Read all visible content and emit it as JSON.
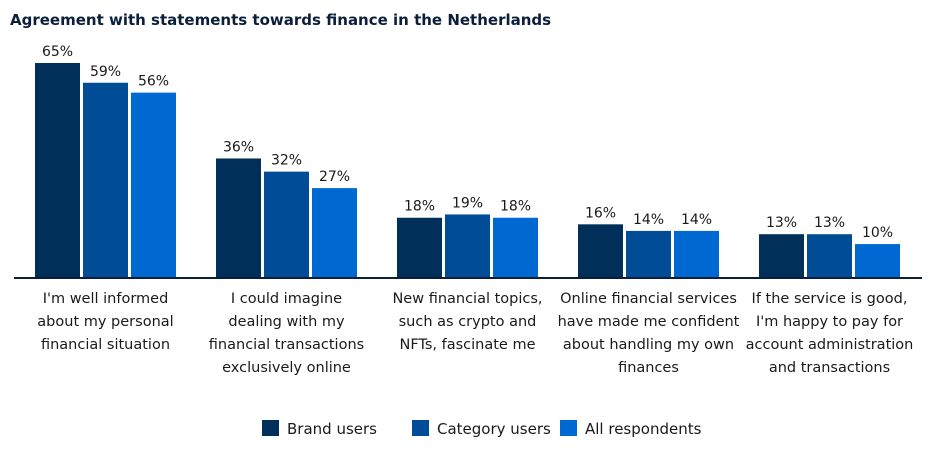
{
  "chart_data": {
    "type": "bar",
    "title": "Agreement with statements towards finance in the Netherlands",
    "xlabel": "",
    "ylabel": "",
    "ylim": [
      0,
      70
    ],
    "grid": false,
    "legend_position": "bottom",
    "categories": [
      [
        "I'm well informed",
        "about my personal",
        "financial situation"
      ],
      [
        "I could imagine",
        "dealing with my",
        "financial transactions",
        "exclusively online"
      ],
      [
        "New financial topics,",
        "such as crypto and",
        "NFTs, fascinate me"
      ],
      [
        "Online financial services",
        "have made me confident",
        "about handling my own",
        "finances"
      ],
      [
        "If the service is good,",
        "I'm happy to pay for",
        "account administration",
        "and transactions"
      ]
    ],
    "series": [
      {
        "name": "Brand users",
        "color": "#00305a",
        "values": [
          65,
          36,
          18,
          16,
          13
        ],
        "labels": [
          "65%",
          "36%",
          "18%",
          "16%",
          "13%"
        ]
      },
      {
        "name": "Category users",
        "color": "#004c97",
        "values": [
          59,
          32,
          19,
          14,
          13
        ],
        "labels": [
          "59%",
          "32%",
          "19%",
          "14%",
          "13%"
        ]
      },
      {
        "name": "All respondents",
        "color": "#0068d1",
        "values": [
          56,
          27,
          18,
          14,
          10
        ],
        "labels": [
          "56%",
          "27%",
          "18%",
          "14%",
          "10%"
        ]
      }
    ]
  }
}
